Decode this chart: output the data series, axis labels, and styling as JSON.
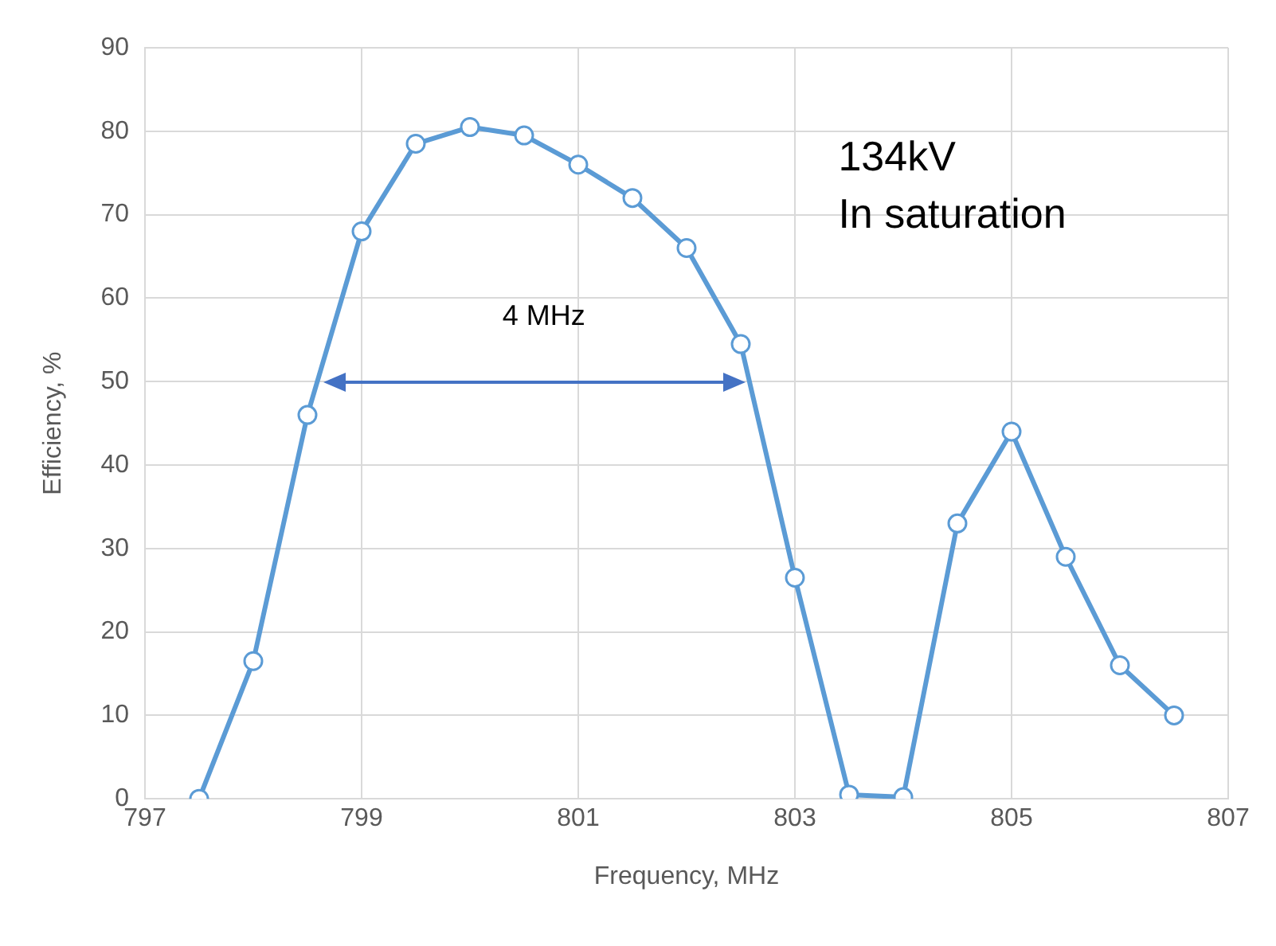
{
  "chart_data": {
    "type": "line",
    "xlabel": "Frequency, MHz",
    "ylabel": "Efficiency, %",
    "x": [
      797.5,
      798,
      798.5,
      799,
      799.5,
      800,
      800.5,
      801,
      801.5,
      802,
      802.5,
      803,
      803.5,
      804,
      804.5,
      805,
      805.5,
      806,
      806.5
    ],
    "series": [
      {
        "color": "#5b9bd5",
        "values": [
          0,
          16.5,
          46,
          68,
          78.5,
          80.5,
          79.5,
          76,
          72,
          66,
          54.5,
          26.5,
          0.5,
          0.2,
          33,
          44,
          29,
          16,
          10
        ]
      }
    ],
    "xlim": [
      797,
      807
    ],
    "xticks": [
      797,
      799,
      801,
      803,
      805,
      807
    ],
    "ylim": [
      0,
      90
    ],
    "yticks": [
      0,
      10,
      20,
      30,
      40,
      50,
      60,
      70,
      80,
      90
    ],
    "grid": true,
    "legend": false,
    "marker": "circle",
    "line_style": "solid",
    "annotations": [
      "4 MHz",
      "134kV\nIn saturation"
    ]
  }
}
